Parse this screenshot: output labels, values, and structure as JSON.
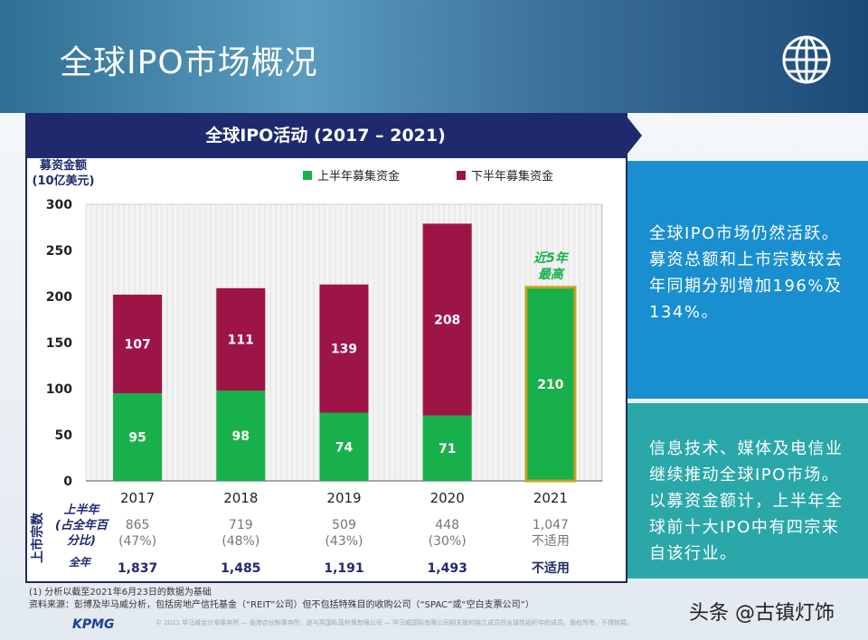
{
  "page": {
    "title": "全球IPO市场概况",
    "globe_icon": "globe-icon"
  },
  "chart_panel": {
    "title": "全球IPO活动 (2017 – 2021)"
  },
  "chart_data": {
    "type": "bar",
    "stacked": true,
    "ylabel_line1": "募资金额",
    "ylabel_line2": "(10亿美元)",
    "ylim": [
      0,
      300
    ],
    "yticks": [
      0,
      50,
      100,
      150,
      200,
      250,
      300
    ],
    "grid": true,
    "categories": [
      "2017",
      "2018",
      "2019",
      "2020",
      "2021"
    ],
    "series": [
      {
        "name": "上半年募集资金",
        "color": "#18b04a",
        "values": [
          95,
          98,
          74,
          71,
          210
        ]
      },
      {
        "name": "下半年募集资金",
        "color": "#9c1546",
        "values": [
          107,
          111,
          139,
          208,
          null
        ]
      }
    ],
    "legend_position": "top",
    "annotation": {
      "line1": "近5年",
      "line2": "最高",
      "category": "2021",
      "color": "#18b04a",
      "highlight_border": "#c8a020"
    }
  },
  "listings": {
    "side_label": "上市宗数",
    "h1_label_lines": [
      "上半年",
      "(占全年百",
      "分比)"
    ],
    "full_label": "全年",
    "h1_counts": [
      "865",
      "719",
      "509",
      "448",
      "1,047"
    ],
    "h1_pct": [
      "(47%)",
      "(48%)",
      "(43%)",
      "(30%)",
      "不适用"
    ],
    "full_counts": [
      "1,837",
      "1,485",
      "1,191",
      "1,493",
      "不适用"
    ]
  },
  "right_panel": {
    "box1": "全球IPO市场仍然活跃。募资总额和上市宗数较去年同期分别增加196%及134%。",
    "box2": "信息技术、媒体及电信业继续推动全球IPO市场。以募资金额计，上半年全球前十大IPO中有四宗来自该行业。"
  },
  "footer": {
    "note": "(1) 分析以截至2021年6月23日的数据为基础",
    "source": "资料来源：彭博及毕马威分析，包括房地产信托基金（“REIT”公司）但不包括特殊目的收购公司（“SPAC”或“空白支票公司”）",
    "logo": "KPMG",
    "copyright": "© 2021 毕马威会计师事务所 — 香港合伙制事务所，是与英国私营担保有限公司 — 毕马威国际有限公司相关联的独立成员所全球性组织中的成员。版权所有，不得转载。",
    "watermark": "头条 @古镇灯饰"
  }
}
